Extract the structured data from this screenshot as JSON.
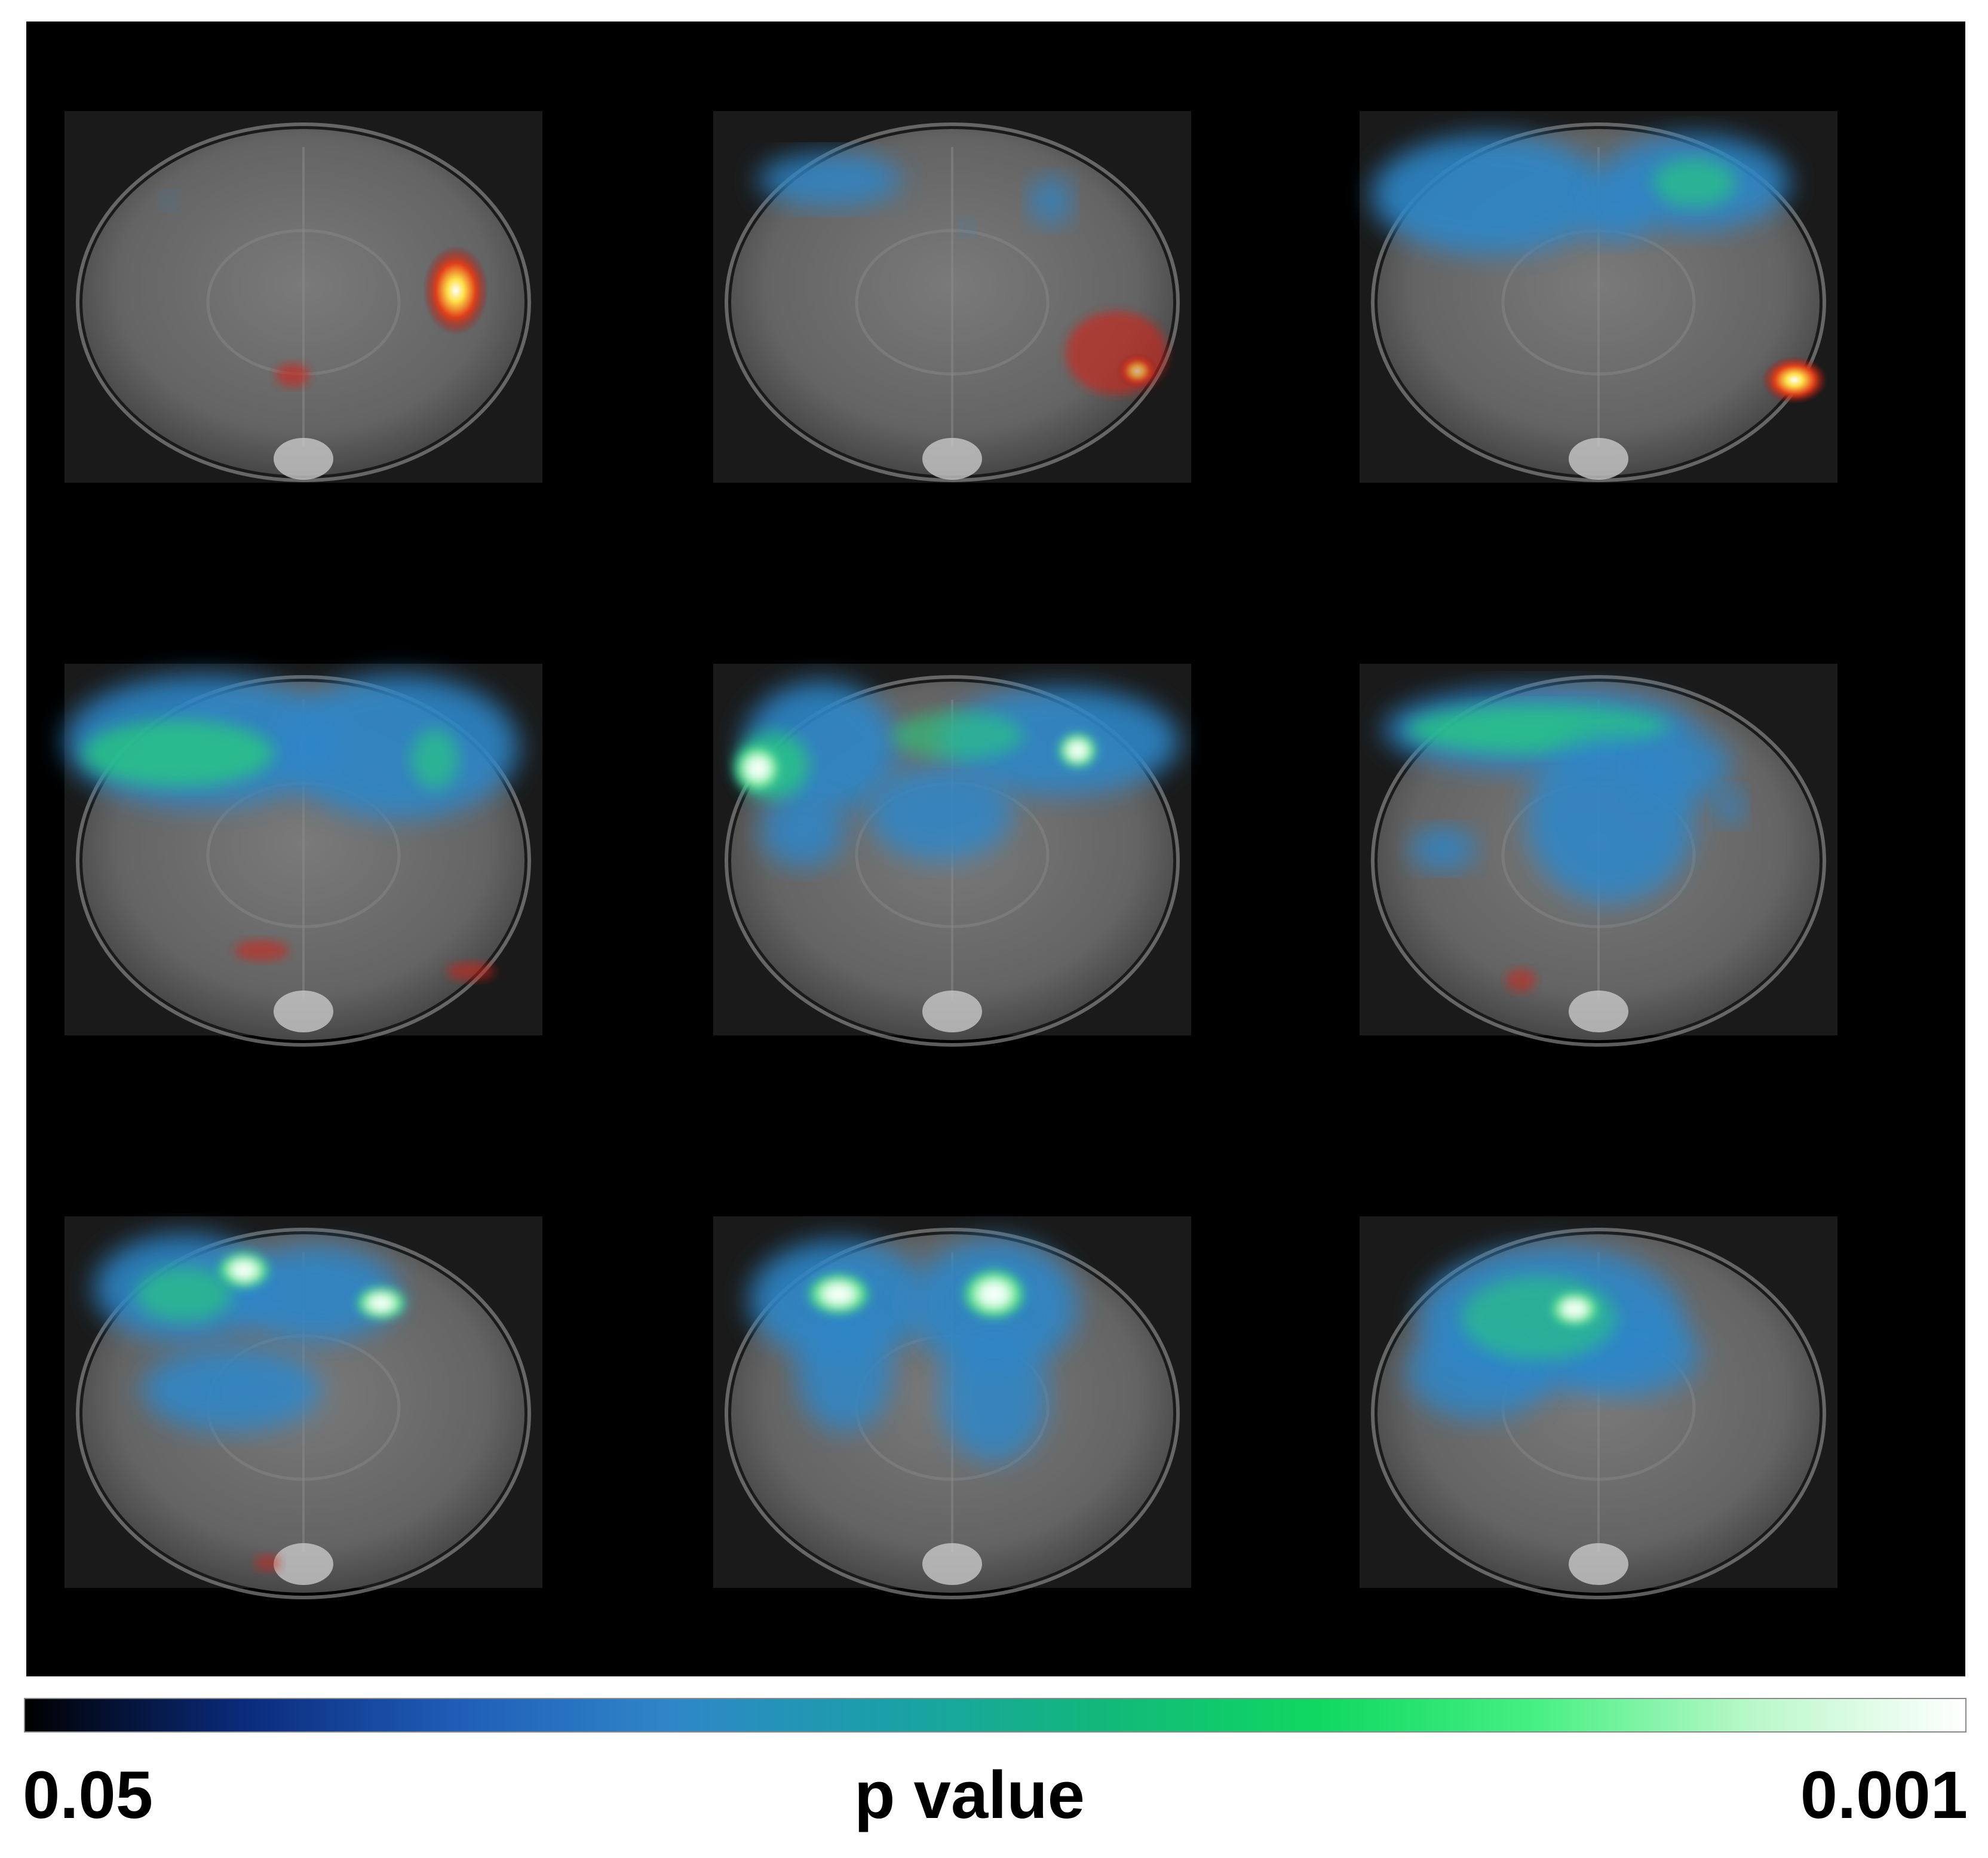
{
  "figure": {
    "slices": [
      {
        "row": 1,
        "col": 1,
        "label": ""
      },
      {
        "row": 1,
        "col": 2,
        "label": ""
      },
      {
        "row": 1,
        "col": 3,
        "label": ""
      },
      {
        "row": 2,
        "col": 1,
        "label": ""
      },
      {
        "row": 2,
        "col": 2,
        "label": ""
      },
      {
        "row": 2,
        "col": 3,
        "label": ""
      },
      {
        "row": 3,
        "col": 1,
        "label": ""
      },
      {
        "row": 3,
        "col": 2,
        "label": ""
      },
      {
        "row": 3,
        "col": 3,
        "label": ""
      }
    ]
  },
  "colorbar": {
    "min_label": "0.05",
    "title": "p value",
    "max_label": "0.001",
    "colors": [
      "#000000",
      "#0a2a7a",
      "#1f5db8",
      "#2f86c8",
      "#1aa0a8",
      "#12b87a",
      "#0fd860",
      "#46f082",
      "#b8f8c8",
      "#ffffff"
    ]
  },
  "overlay_colors": {
    "significance_cool": "#2f86c8",
    "significance_green": "#25d27a",
    "significance_peak": "#ffffff",
    "opposite_hot": "#d42018",
    "opposite_peak": "#ffe14a"
  }
}
